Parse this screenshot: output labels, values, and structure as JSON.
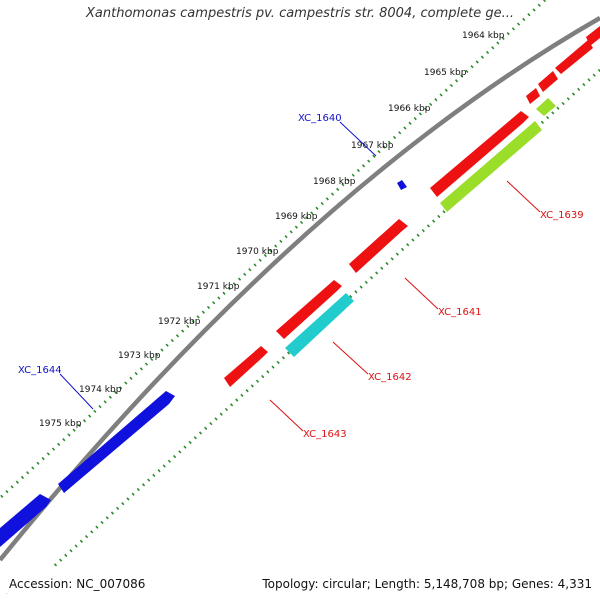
{
  "title": "Xanthomonas campestris pv. campestris str. 8004, complete ge...",
  "footer": {
    "accession": "Accession: NC_007086",
    "summary": "Topology: circular; Length: 5,148,708 bp; Genes: 4,331"
  },
  "colors": {
    "backbone": "#7f7f7f",
    "tick_track": "#2e8b2e",
    "gene_red": "#ee1111",
    "gene_blue": "#1111dd",
    "gene_green": "#9ade2a",
    "gene_cyan": "#22cccc",
    "label_red": "#dd1111",
    "label_blue": "#1111cc"
  },
  "ticks": [
    "1964 kbp",
    "1965 kbp",
    "1966 kbp",
    "1967 kbp",
    "1968 kbp",
    "1969 kbp",
    "1970 kbp",
    "1971 kbp",
    "1972 kbp",
    "1973 kbp",
    "1974 kbp",
    "1975 kbp"
  ],
  "gene_labels": [
    {
      "id": "XC_1640",
      "strand": "forward"
    },
    {
      "id": "XC_1644",
      "strand": "forward"
    },
    {
      "id": "XC_1639",
      "strand": "reverse"
    },
    {
      "id": "XC_1641",
      "strand": "reverse"
    },
    {
      "id": "XC_1642",
      "strand": "reverse"
    },
    {
      "id": "XC_1643",
      "strand": "reverse"
    }
  ]
}
